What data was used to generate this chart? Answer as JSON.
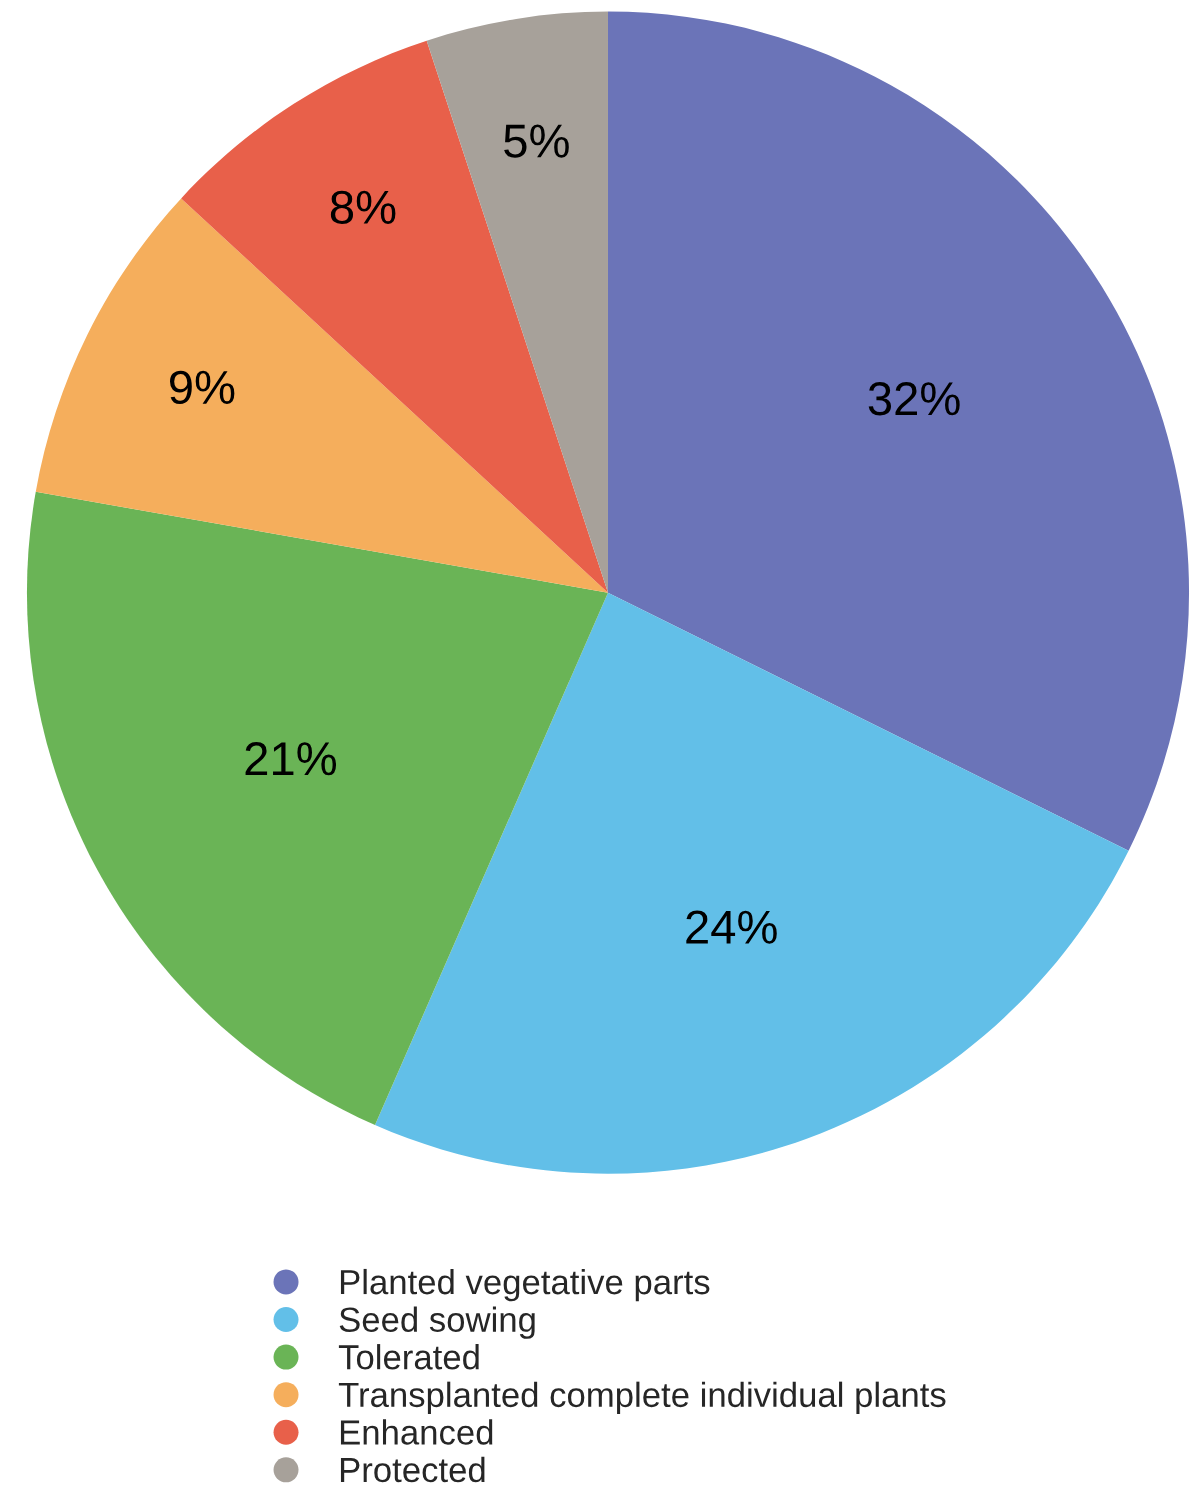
{
  "chart_data": {
    "type": "pie",
    "categories": [
      "Planted vegetative parts",
      "Seed sowing",
      "Tolerated",
      "Transplanted complete individual plants",
      "Enhanced",
      "Protected"
    ],
    "values": [
      32,
      24,
      21,
      9,
      8,
      5
    ],
    "colors": [
      "#6b74b8",
      "#62bfe8",
      "#6ab456",
      "#f5ae5c",
      "#e8604a",
      "#a7a19a"
    ],
    "value_labels": [
      "32%",
      "24%",
      "21%",
      "9%",
      "8%",
      "5%"
    ],
    "legend": "bottom"
  }
}
